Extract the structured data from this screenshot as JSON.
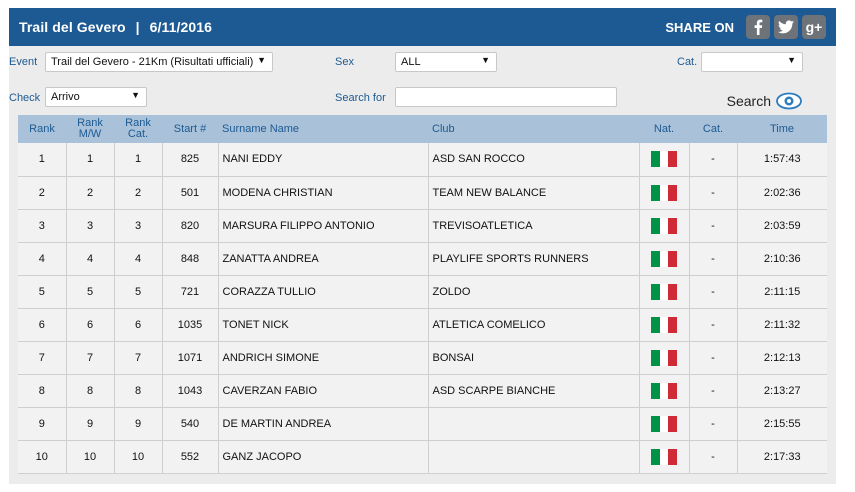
{
  "header": {
    "title": "Trail del Gevero",
    "separator": "|",
    "date": "6/11/2016",
    "share_label": "SHARE ON",
    "share_buttons": [
      "facebook-icon",
      "twitter-icon",
      "google-plus-icon"
    ],
    "google_plus_text": "g+"
  },
  "colors": {
    "header_bg": "#1d5a93",
    "label_color": "#1d5a93",
    "table_header_bg": "#a9c1d9",
    "flag_green": "#009246",
    "flag_white": "#ffffff",
    "flag_red": "#ce2b37"
  },
  "filters": {
    "event_label": "Event",
    "event_value": "Trail del Gevero - 21Km (Risultati ufficiali)",
    "sex_label": "Sex",
    "sex_value": "ALL",
    "cat_label": "Cat.",
    "cat_value": "",
    "check_label": "Check",
    "check_value": "Arrivo",
    "search_label": "Search for",
    "search_value": "",
    "search_button": "Search"
  },
  "table": {
    "headers": [
      "Rank",
      "Rank M/W",
      "Rank Cat.",
      "Start #",
      "Surname Name",
      "Club",
      "Nat.",
      "Cat.",
      "Time"
    ],
    "rows": [
      {
        "rank": "1",
        "rank_mw": "1",
        "rank_cat": "1",
        "start": "825",
        "name": "NANI EDDY",
        "club": "ASD SAN ROCCO",
        "nat": "Italy",
        "cat": "-",
        "time": "1:57:43"
      },
      {
        "rank": "2",
        "rank_mw": "2",
        "rank_cat": "2",
        "start": "501",
        "name": "MODENA CHRISTIAN",
        "club": "TEAM NEW BALANCE",
        "nat": "Italy",
        "cat": "-",
        "time": "2:02:36"
      },
      {
        "rank": "3",
        "rank_mw": "3",
        "rank_cat": "3",
        "start": "820",
        "name": "MARSURA FILIPPO ANTONIO",
        "club": "TREVISOATLETICA",
        "nat": "Italy",
        "cat": "-",
        "time": "2:03:59"
      },
      {
        "rank": "4",
        "rank_mw": "4",
        "rank_cat": "4",
        "start": "848",
        "name": "ZANATTA ANDREA",
        "club": "PLAYLIFE SPORTS RUNNERS",
        "nat": "Italy",
        "cat": "-",
        "time": "2:10:36"
      },
      {
        "rank": "5",
        "rank_mw": "5",
        "rank_cat": "5",
        "start": "721",
        "name": "CORAZZA TULLIO",
        "club": "ZOLDO",
        "nat": "Italy",
        "cat": "-",
        "time": "2:11:15"
      },
      {
        "rank": "6",
        "rank_mw": "6",
        "rank_cat": "6",
        "start": "1035",
        "name": "TONET NICK",
        "club": "ATLETICA COMELICO",
        "nat": "Italy",
        "cat": "-",
        "time": "2:11:32"
      },
      {
        "rank": "7",
        "rank_mw": "7",
        "rank_cat": "7",
        "start": "1071",
        "name": "ANDRICH SIMONE",
        "club": "BONSAI",
        "nat": "Italy",
        "cat": "-",
        "time": "2:12:13"
      },
      {
        "rank": "8",
        "rank_mw": "8",
        "rank_cat": "8",
        "start": "1043",
        "name": "CAVERZAN FABIO",
        "club": "ASD SCARPE BIANCHE",
        "nat": "Italy",
        "cat": "-",
        "time": "2:13:27"
      },
      {
        "rank": "9",
        "rank_mw": "9",
        "rank_cat": "9",
        "start": "540",
        "name": "DE MARTIN ANDREA",
        "club": "",
        "nat": "Italy",
        "cat": "-",
        "time": "2:15:55"
      },
      {
        "rank": "10",
        "rank_mw": "10",
        "rank_cat": "10",
        "start": "552",
        "name": "GANZ JACOPO",
        "club": "",
        "nat": "Italy",
        "cat": "-",
        "time": "2:17:33"
      }
    ]
  }
}
